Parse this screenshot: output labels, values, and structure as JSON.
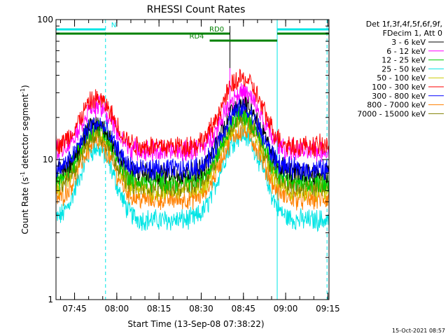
{
  "chart_data": {
    "type": "line",
    "title": "RHESSI Count Rates",
    "xlabel": "Start Time (13-Sep-08 07:38:22)",
    "ylabel": "Count Rate (s⁻¹ detector segment⁻¹)",
    "ylabel_main": "Count Rate (s",
    "ylabel_sup1": "-1",
    "ylabel_mid": " detector segment",
    "ylabel_sup2": "-1",
    "ylabel_end": ")",
    "yscale": "log",
    "ylim": [
      1,
      100
    ],
    "xlim_minutes": [
      0,
      97
    ],
    "yticks": [
      {
        "label": "100",
        "value": 100
      },
      {
        "label": "10",
        "value": 10
      },
      {
        "label": "1",
        "value": 1
      }
    ],
    "xticks": [
      {
        "label": "07:45",
        "minute": 6.6
      },
      {
        "label": "08:00",
        "minute": 21.6
      },
      {
        "label": "08:15",
        "minute": 36.6
      },
      {
        "label": "08:30",
        "minute": 51.6
      },
      {
        "label": "08:45",
        "minute": 66.6
      },
      {
        "label": "09:00",
        "minute": 81.6
      },
      {
        "label": "09:15",
        "minute": 96.6
      }
    ],
    "legend_placement": "right",
    "legend_header": [
      "Det 1f,3f,4f,5f,6f,9f,",
      "FDecim 1, Att 0"
    ],
    "series": [
      {
        "name": "3 - 6 keV",
        "color": "#000000",
        "base": 8.0,
        "peak1": 18,
        "peak2": 26
      },
      {
        "name": "6 - 12 keV",
        "color": "#ff00ff",
        "base": 11.5,
        "peak1": 24,
        "peak2": 30
      },
      {
        "name": "12 - 25 keV",
        "color": "#00cc00",
        "base": 7.0,
        "peak1": 17,
        "peak2": 21
      },
      {
        "name": "25 - 50 keV",
        "color": "#00e5e5",
        "base": 3.7,
        "peak1": 12,
        "peak2": 15
      },
      {
        "name": "50 - 100 keV",
        "color": "#cccc00",
        "base": 6.0,
        "peak1": 15,
        "peak2": 19
      },
      {
        "name": "100 - 300 keV",
        "color": "#ff0000",
        "base": 12.5,
        "peak1": 27,
        "peak2": 38
      },
      {
        "name": "300 - 800 keV",
        "color": "#0000ff",
        "base": 8.5,
        "peak1": 18,
        "peak2": 23
      },
      {
        "name": "800 - 7000 keV",
        "color": "#ff8000",
        "base": 5.2,
        "peak1": 13,
        "peak2": 16
      },
      {
        "name": "7000 - 15000 keV",
        "color": "#808000",
        "base": 6.5,
        "peak1": 15,
        "peak2": 20
      }
    ],
    "peaks": [
      {
        "series_peak": "peak1",
        "minute": 14.5,
        "width": 7
      },
      {
        "series_peak": "peak2",
        "minute": 66,
        "width": 8
      }
    ],
    "segments": [
      {
        "kind": "night",
        "label": "N",
        "start_min": 0,
        "end_min": 17.6
      },
      {
        "kind": "night",
        "label": "",
        "start_min": 78.6,
        "end_min": 97
      },
      {
        "kind": "saa",
        "label": "RD0",
        "start_min": 0,
        "end_min": 61.7
      },
      {
        "kind": "saa",
        "label": "RD4",
        "start_min": 54.6,
        "end_min": 78.6
      },
      {
        "kind": "saa",
        "label": "",
        "start_min": 78.6,
        "end_min": 97
      }
    ],
    "vertical_lines": [
      {
        "minute": 0,
        "style": "solid"
      },
      {
        "minute": 17.6,
        "style": "dashed"
      },
      {
        "minute": 78.6,
        "style": "solid"
      },
      {
        "minute": 96.3,
        "style": "dashed"
      }
    ],
    "spike_minute": 61.8
  },
  "footer": {
    "timestamp": "15-Oct-2021 08:57"
  },
  "colors": {
    "night_bar": "#00e5e5",
    "saa_bar": "#008000",
    "vline": "#00e5e5"
  }
}
